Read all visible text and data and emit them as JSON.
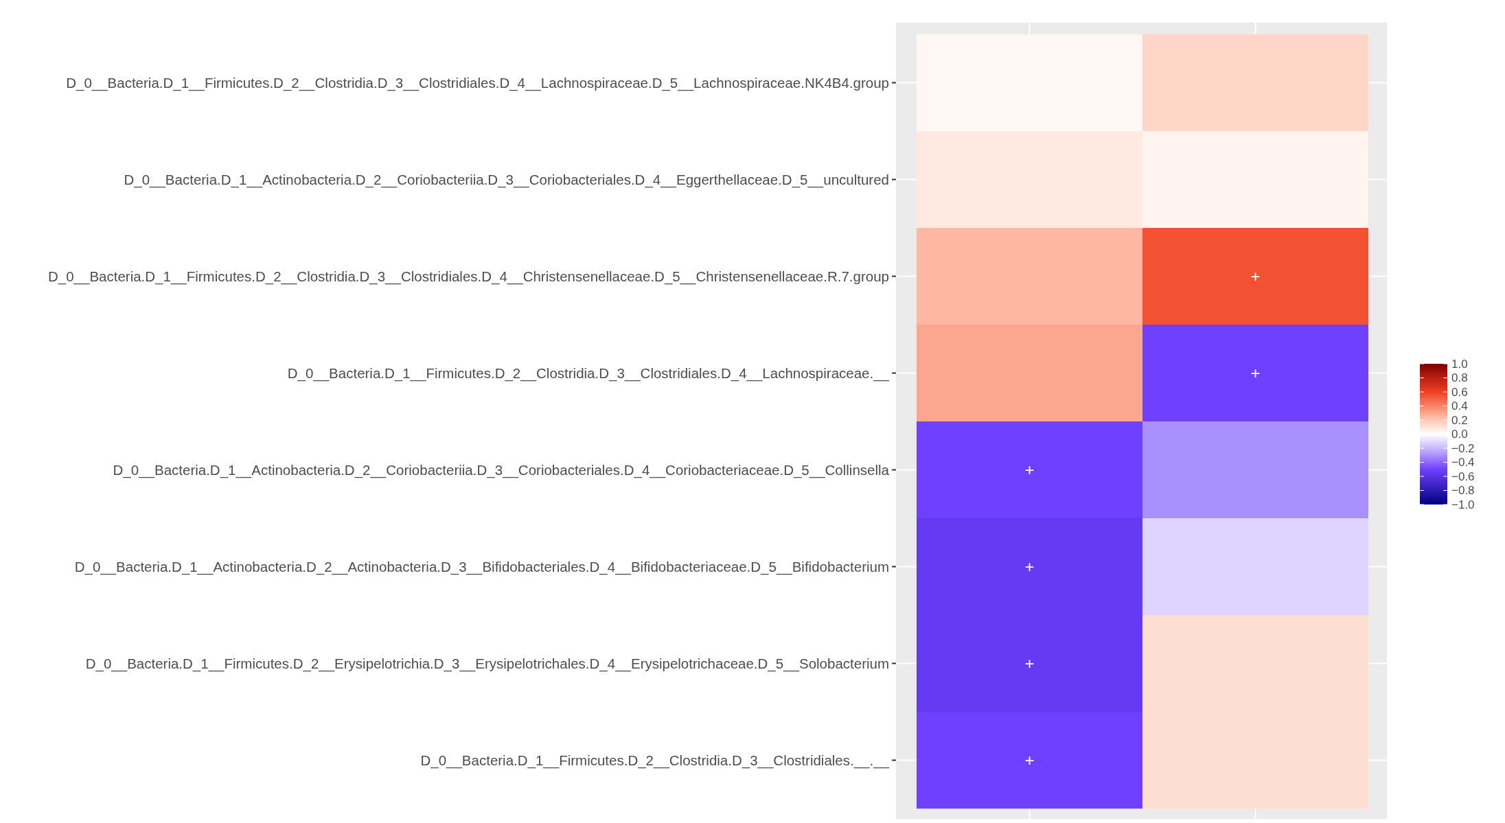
{
  "chart_data": {
    "type": "heatmap",
    "categories": [
      null,
      null
    ],
    "y_categories": [
      "D_0__Bacteria.D_1__Firmicutes.D_2__Clostridia.D_3__Clostridiales.D_4__Lachnospiraceae.D_5__Lachnospiraceae.NK4B4.group",
      "D_0__Bacteria.D_1__Actinobacteria.D_2__Coriobacteriia.D_3__Coriobacteriales.D_4__Eggerthellaceae.D_5__uncultured",
      "D_0__Bacteria.D_1__Firmicutes.D_2__Clostridia.D_3__Clostridiales.D_4__Christensenellaceae.D_5__Christensenellaceae.R.7.group",
      "D_0__Bacteria.D_1__Firmicutes.D_2__Clostridia.D_3__Clostridiales.D_4__Lachnospiraceae.__",
      "D_0__Bacteria.D_1__Actinobacteria.D_2__Coriobacteriia.D_3__Coriobacteriales.D_4__Coriobacteriaceae.D_5__Collinsella",
      "D_0__Bacteria.D_1__Actinobacteria.D_2__Actinobacteria.D_3__Bifidobacteriales.D_4__Bifidobacteriaceae.D_5__Bifidobacterium",
      "D_0__Bacteria.D_1__Firmicutes.D_2__Erysipelotrichia.D_3__Erysipelotrichales.D_4__Erysipelotrichaceae.D_5__Solobacterium",
      "D_0__Bacteria.D_1__Firmicutes.D_2__Clostridia.D_3__Clostridiales.__.__"
    ],
    "cells": [
      [
        0.03,
        0.15
      ],
      [
        0.08,
        0.04
      ],
      [
        0.25,
        0.55
      ],
      [
        0.3,
        -0.5
      ],
      [
        -0.5,
        -0.3
      ],
      [
        -0.55,
        -0.12
      ],
      [
        -0.55,
        0.12
      ],
      [
        -0.5,
        0.12
      ]
    ],
    "cell_labels": [
      [
        null,
        null
      ],
      [
        null,
        null
      ],
      [
        null,
        "+"
      ],
      [
        null,
        "+"
      ],
      [
        "+",
        null
      ],
      [
        "+",
        null
      ],
      [
        "+",
        null
      ],
      [
        "+",
        null
      ]
    ],
    "clim": [
      -1,
      1
    ],
    "grid": true,
    "cticks": [
      {
        "value": 1,
        "label": "1.0"
      },
      {
        "value": 0.8,
        "label": "0.8"
      },
      {
        "value": 0.6,
        "label": "0.6"
      },
      {
        "value": 0.4,
        "label": "0.4"
      },
      {
        "value": 0.2,
        "label": "0.2"
      },
      {
        "value": 0,
        "label": "0.0"
      },
      {
        "value": -0.2,
        "label": "−0.2"
      },
      {
        "value": -0.4,
        "label": "−0.4"
      },
      {
        "value": -0.6,
        "label": "−0.6"
      },
      {
        "value": -0.8,
        "label": "−0.8"
      },
      {
        "value": -1,
        "label": "−1.0"
      }
    ]
  }
}
